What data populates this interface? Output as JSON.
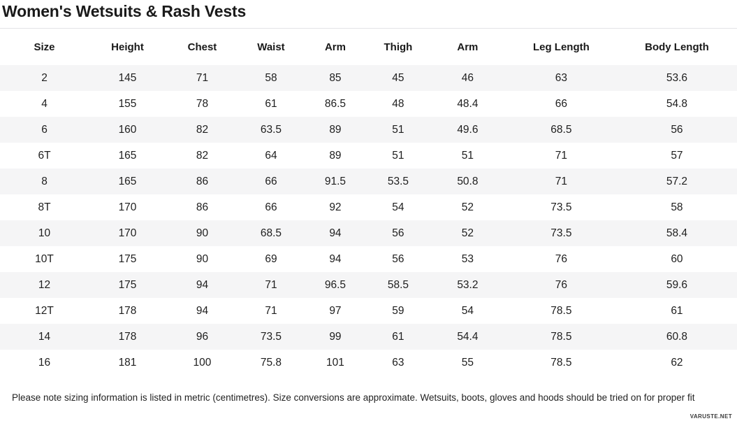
{
  "page": {
    "title": "Women's Wetsuits & Rash Vests",
    "note": "Please note sizing information is listed in metric (centimetres). Size conversions are approximate. Wetsuits, boots, gloves and hoods should be tried on for proper fit",
    "watermark": "VARUSTE.NET"
  },
  "chart_data": {
    "type": "table",
    "title": "Women's Wetsuits & Rash Vests",
    "columns": [
      "Size",
      "Height",
      "Chest",
      "Waist",
      "Arm",
      "Thigh",
      "Arm",
      "Leg Length",
      "Body Length"
    ],
    "rows": [
      [
        "2",
        "145",
        "71",
        "58",
        "85",
        "45",
        "46",
        "63",
        "53.6"
      ],
      [
        "4",
        "155",
        "78",
        "61",
        "86.5",
        "48",
        "48.4",
        "66",
        "54.8"
      ],
      [
        "6",
        "160",
        "82",
        "63.5",
        "89",
        "51",
        "49.6",
        "68.5",
        "56"
      ],
      [
        "6T",
        "165",
        "82",
        "64",
        "89",
        "51",
        "51",
        "71",
        "57"
      ],
      [
        "8",
        "165",
        "86",
        "66",
        "91.5",
        "53.5",
        "50.8",
        "71",
        "57.2"
      ],
      [
        "8T",
        "170",
        "86",
        "66",
        "92",
        "54",
        "52",
        "73.5",
        "58"
      ],
      [
        "10",
        "170",
        "90",
        "68.5",
        "94",
        "56",
        "52",
        "73.5",
        "58.4"
      ],
      [
        "10T",
        "175",
        "90",
        "69",
        "94",
        "56",
        "53",
        "76",
        "60"
      ],
      [
        "12",
        "175",
        "94",
        "71",
        "96.5",
        "58.5",
        "53.2",
        "76",
        "59.6"
      ],
      [
        "12T",
        "178",
        "94",
        "71",
        "97",
        "59",
        "54",
        "78.5",
        "61"
      ],
      [
        "14",
        "178",
        "96",
        "73.5",
        "99",
        "61",
        "54.4",
        "78.5",
        "60.8"
      ],
      [
        "16",
        "181",
        "100",
        "75.8",
        "101",
        "63",
        "55",
        "78.5",
        "62"
      ]
    ],
    "units": "cm",
    "colors": {
      "row_stripe": "#f5f5f6",
      "divider": "#e4e4e6",
      "text": "#1c1c1c"
    }
  }
}
